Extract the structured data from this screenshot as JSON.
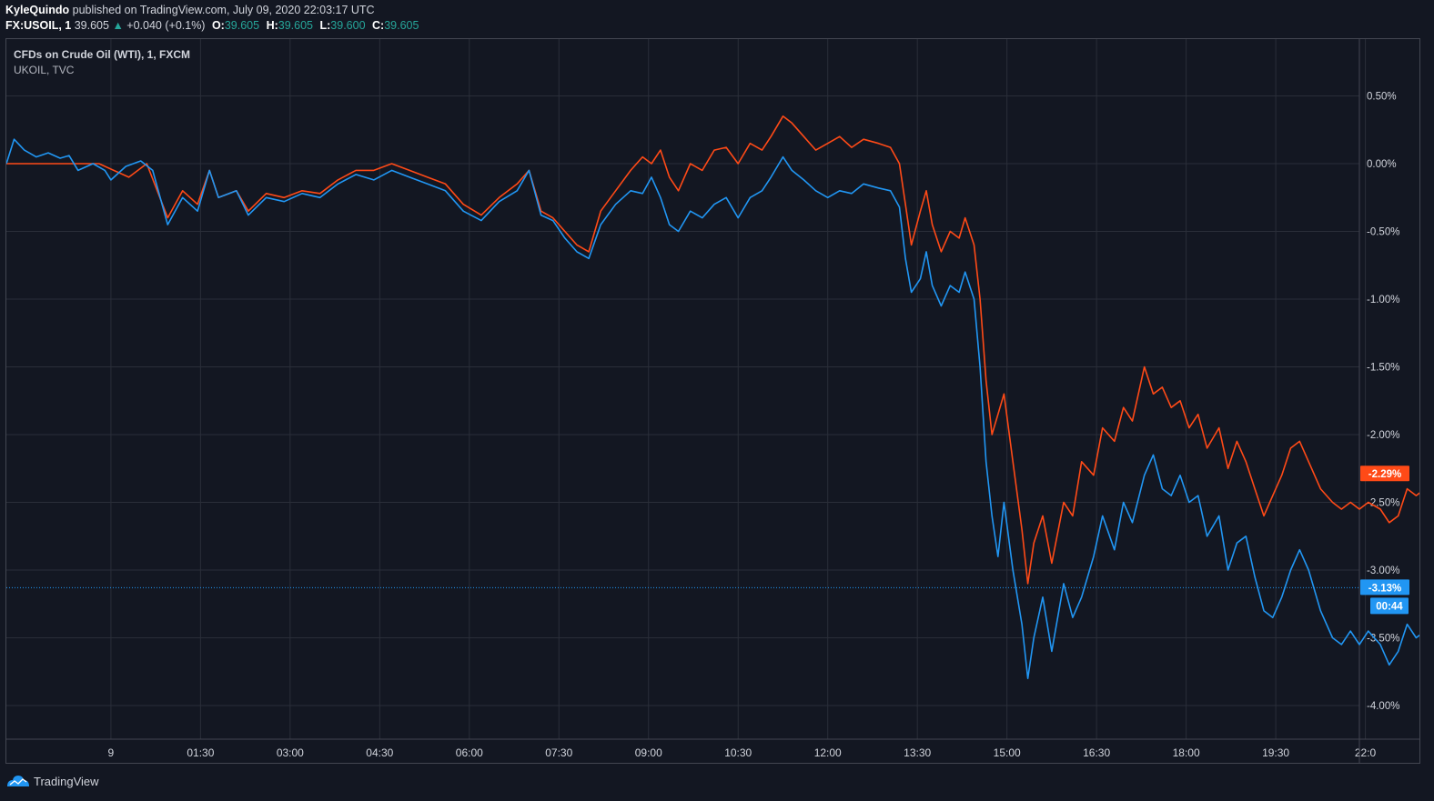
{
  "header": {
    "author": "KyleQuindo",
    "published": "published on TradingView.com, July 09, 2020 22:03:17 UTC",
    "symbol": "FX:USOIL, 1",
    "last": "39.605",
    "change": "+0.040 (+0.1%)",
    "o_label": "O:",
    "o_value": "39.605",
    "h_label": "H:",
    "h_value": "39.605",
    "l_label": "L:",
    "l_value": "39.600",
    "c_label": "C:",
    "c_value": "39.605"
  },
  "legend": {
    "main": "CFDs on Crude Oil (WTI), 1, FXCM",
    "compare": "UKOIL, TVC"
  },
  "footer": {
    "brand": "TradingView"
  },
  "colors": {
    "background": "#131722",
    "grid": "#2a2e39",
    "border": "#434651",
    "axis_text": "#d1d4dc",
    "wti": "#2196f3",
    "ukoil": "#ff4a17",
    "ohlc_value": "#26a69a"
  },
  "chart_data": {
    "type": "line",
    "title": "CFDs on Crude Oil (WTI), 1, FXCM",
    "y_unit": "%",
    "ylim": [
      -4.2,
      0.95
    ],
    "y_ticks": [
      "0.50%",
      "0.00%",
      "-0.50%",
      "-1.00%",
      "-1.50%",
      "-2.00%",
      "-2.50%",
      "-3.00%",
      "-3.50%",
      "-4.00%"
    ],
    "y_tick_values": [
      0.5,
      0.0,
      -0.5,
      -1.0,
      -1.5,
      -2.0,
      -2.5,
      -3.0,
      -3.5,
      -4.0
    ],
    "x_ticks": [
      "9",
      "01:30",
      "03:00",
      "04:30",
      "06:00",
      "07:30",
      "09:00",
      "10:30",
      "12:00",
      "13:30",
      "15:00",
      "16:30",
      "18:00",
      "19:30",
      "22:0"
    ],
    "x_tick_hours": [
      0,
      1.5,
      3,
      4.5,
      6,
      7.5,
      9,
      10.5,
      12,
      13.5,
      15,
      16.5,
      18,
      19.5,
      21
    ],
    "xlim_hours": [
      -1.75,
      20.9
    ],
    "grid": true,
    "series": [
      {
        "name": "CFDs on Crude Oil (WTI), 1, FXCM",
        "color": "#2196f3",
        "last_label": "-3.13%",
        "last_value": -3.13,
        "countdown": "00:44",
        "points": [
          [
            -1.75,
            0.0
          ],
          [
            -1.62,
            0.18
          ],
          [
            -1.45,
            0.1
          ],
          [
            -1.25,
            0.05
          ],
          [
            -1.05,
            0.08
          ],
          [
            -0.85,
            0.04
          ],
          [
            -0.7,
            0.06
          ],
          [
            -0.55,
            -0.05
          ],
          [
            -0.3,
            0.0
          ],
          [
            -0.1,
            -0.05
          ],
          [
            0.0,
            -0.12
          ],
          [
            0.25,
            -0.02
          ],
          [
            0.5,
            0.02
          ],
          [
            0.7,
            -0.05
          ],
          [
            0.95,
            -0.45
          ],
          [
            1.2,
            -0.25
          ],
          [
            1.45,
            -0.35
          ],
          [
            1.65,
            -0.05
          ],
          [
            1.8,
            -0.25
          ],
          [
            2.1,
            -0.2
          ],
          [
            2.3,
            -0.38
          ],
          [
            2.6,
            -0.25
          ],
          [
            2.9,
            -0.28
          ],
          [
            3.2,
            -0.22
          ],
          [
            3.5,
            -0.25
          ],
          [
            3.8,
            -0.15
          ],
          [
            4.1,
            -0.08
          ],
          [
            4.4,
            -0.12
          ],
          [
            4.7,
            -0.05
          ],
          [
            5.0,
            -0.1
          ],
          [
            5.3,
            -0.15
          ],
          [
            5.6,
            -0.2
          ],
          [
            5.9,
            -0.35
          ],
          [
            6.2,
            -0.42
          ],
          [
            6.5,
            -0.28
          ],
          [
            6.8,
            -0.2
          ],
          [
            7.0,
            -0.05
          ],
          [
            7.2,
            -0.38
          ],
          [
            7.4,
            -0.42
          ],
          [
            7.6,
            -0.55
          ],
          [
            7.8,
            -0.65
          ],
          [
            8.0,
            -0.7
          ],
          [
            8.2,
            -0.45
          ],
          [
            8.45,
            -0.3
          ],
          [
            8.7,
            -0.2
          ],
          [
            8.9,
            -0.22
          ],
          [
            9.05,
            -0.1
          ],
          [
            9.2,
            -0.25
          ],
          [
            9.35,
            -0.45
          ],
          [
            9.5,
            -0.5
          ],
          [
            9.7,
            -0.35
          ],
          [
            9.9,
            -0.4
          ],
          [
            10.1,
            -0.3
          ],
          [
            10.3,
            -0.25
          ],
          [
            10.5,
            -0.4
          ],
          [
            10.7,
            -0.25
          ],
          [
            10.9,
            -0.2
          ],
          [
            11.05,
            -0.1
          ],
          [
            11.25,
            0.05
          ],
          [
            11.4,
            -0.05
          ],
          [
            11.6,
            -0.12
          ],
          [
            11.8,
            -0.2
          ],
          [
            12.0,
            -0.25
          ],
          [
            12.2,
            -0.2
          ],
          [
            12.4,
            -0.22
          ],
          [
            12.6,
            -0.15
          ],
          [
            12.85,
            -0.18
          ],
          [
            13.05,
            -0.2
          ],
          [
            13.2,
            -0.32
          ],
          [
            13.3,
            -0.7
          ],
          [
            13.4,
            -0.95
          ],
          [
            13.55,
            -0.85
          ],
          [
            13.65,
            -0.65
          ],
          [
            13.75,
            -0.9
          ],
          [
            13.9,
            -1.05
          ],
          [
            14.05,
            -0.9
          ],
          [
            14.2,
            -0.95
          ],
          [
            14.3,
            -0.8
          ],
          [
            14.45,
            -1.0
          ],
          [
            14.55,
            -1.5
          ],
          [
            14.65,
            -2.2
          ],
          [
            14.75,
            -2.6
          ],
          [
            14.85,
            -2.9
          ],
          [
            14.95,
            -2.5
          ],
          [
            15.1,
            -3.0
          ],
          [
            15.25,
            -3.4
          ],
          [
            15.35,
            -3.8
          ],
          [
            15.45,
            -3.5
          ],
          [
            15.6,
            -3.2
          ],
          [
            15.75,
            -3.6
          ],
          [
            15.95,
            -3.1
          ],
          [
            16.1,
            -3.35
          ],
          [
            16.25,
            -3.2
          ],
          [
            16.45,
            -2.9
          ],
          [
            16.6,
            -2.6
          ],
          [
            16.8,
            -2.85
          ],
          [
            16.95,
            -2.5
          ],
          [
            17.1,
            -2.65
          ],
          [
            17.3,
            -2.3
          ],
          [
            17.45,
            -2.15
          ],
          [
            17.6,
            -2.4
          ],
          [
            17.75,
            -2.45
          ],
          [
            17.9,
            -2.3
          ],
          [
            18.05,
            -2.5
          ],
          [
            18.2,
            -2.45
          ],
          [
            18.35,
            -2.75
          ],
          [
            18.55,
            -2.6
          ],
          [
            18.7,
            -3.0
          ],
          [
            18.85,
            -2.8
          ],
          [
            19.0,
            -2.75
          ],
          [
            19.15,
            -3.05
          ],
          [
            19.3,
            -3.3
          ],
          [
            19.45,
            -3.35
          ],
          [
            19.6,
            -3.2
          ],
          [
            19.75,
            -3.0
          ],
          [
            19.9,
            -2.85
          ],
          [
            20.05,
            -3.0
          ],
          [
            20.25,
            -3.3
          ],
          [
            20.45,
            -3.5
          ],
          [
            20.6,
            -3.55
          ],
          [
            20.75,
            -3.45
          ],
          [
            20.9,
            -3.55
          ],
          [
            21.05,
            -3.45
          ],
          [
            21.25,
            -3.55
          ],
          [
            21.4,
            -3.7
          ],
          [
            21.55,
            -3.6
          ],
          [
            21.7,
            -3.4
          ],
          [
            21.85,
            -3.5
          ],
          [
            22.0,
            -3.45
          ],
          [
            22.2,
            -3.35
          ],
          [
            22.35,
            -3.3
          ],
          [
            22.5,
            -3.25
          ],
          [
            22.65,
            -3.15
          ],
          [
            22.8,
            -3.13
          ]
        ]
      },
      {
        "name": "UKOIL, TVC",
        "color": "#ff4a17",
        "last_label": "-2.29%",
        "last_value": -2.29,
        "points": [
          [
            -1.75,
            0.0
          ],
          [
            -1.0,
            0.0
          ],
          [
            -0.2,
            0.0
          ],
          [
            0.3,
            -0.1
          ],
          [
            0.6,
            0.0
          ],
          [
            0.95,
            -0.4
          ],
          [
            1.2,
            -0.2
          ],
          [
            1.45,
            -0.3
          ],
          [
            1.65,
            -0.05
          ],
          [
            1.8,
            -0.25
          ],
          [
            2.1,
            -0.2
          ],
          [
            2.3,
            -0.35
          ],
          [
            2.6,
            -0.22
          ],
          [
            2.9,
            -0.25
          ],
          [
            3.2,
            -0.2
          ],
          [
            3.5,
            -0.22
          ],
          [
            3.8,
            -0.12
          ],
          [
            4.1,
            -0.05
          ],
          [
            4.4,
            -0.05
          ],
          [
            4.7,
            0.0
          ],
          [
            5.0,
            -0.05
          ],
          [
            5.3,
            -0.1
          ],
          [
            5.6,
            -0.15
          ],
          [
            5.9,
            -0.3
          ],
          [
            6.2,
            -0.38
          ],
          [
            6.5,
            -0.25
          ],
          [
            6.8,
            -0.15
          ],
          [
            7.0,
            -0.05
          ],
          [
            7.2,
            -0.35
          ],
          [
            7.4,
            -0.4
          ],
          [
            7.6,
            -0.5
          ],
          [
            7.8,
            -0.6
          ],
          [
            8.0,
            -0.65
          ],
          [
            8.2,
            -0.35
          ],
          [
            8.45,
            -0.2
          ],
          [
            8.7,
            -0.05
          ],
          [
            8.9,
            0.05
          ],
          [
            9.05,
            0.0
          ],
          [
            9.2,
            0.1
          ],
          [
            9.35,
            -0.1
          ],
          [
            9.5,
            -0.2
          ],
          [
            9.7,
            0.0
          ],
          [
            9.9,
            -0.05
          ],
          [
            10.1,
            0.1
          ],
          [
            10.3,
            0.12
          ],
          [
            10.5,
            0.0
          ],
          [
            10.7,
            0.15
          ],
          [
            10.9,
            0.1
          ],
          [
            11.05,
            0.2
          ],
          [
            11.25,
            0.35
          ],
          [
            11.4,
            0.3
          ],
          [
            11.6,
            0.2
          ],
          [
            11.8,
            0.1
          ],
          [
            12.0,
            0.15
          ],
          [
            12.2,
            0.2
          ],
          [
            12.4,
            0.12
          ],
          [
            12.6,
            0.18
          ],
          [
            12.85,
            0.15
          ],
          [
            13.05,
            0.12
          ],
          [
            13.2,
            0.0
          ],
          [
            13.3,
            -0.3
          ],
          [
            13.4,
            -0.6
          ],
          [
            13.55,
            -0.35
          ],
          [
            13.65,
            -0.2
          ],
          [
            13.75,
            -0.45
          ],
          [
            13.9,
            -0.65
          ],
          [
            14.05,
            -0.5
          ],
          [
            14.2,
            -0.55
          ],
          [
            14.3,
            -0.4
          ],
          [
            14.45,
            -0.6
          ],
          [
            14.55,
            -1.0
          ],
          [
            14.65,
            -1.6
          ],
          [
            14.75,
            -2.0
          ],
          [
            14.85,
            -1.85
          ],
          [
            14.95,
            -1.7
          ],
          [
            15.1,
            -2.2
          ],
          [
            15.25,
            -2.7
          ],
          [
            15.35,
            -3.1
          ],
          [
            15.45,
            -2.8
          ],
          [
            15.6,
            -2.6
          ],
          [
            15.75,
            -2.95
          ],
          [
            15.95,
            -2.5
          ],
          [
            16.1,
            -2.6
          ],
          [
            16.25,
            -2.2
          ],
          [
            16.45,
            -2.3
          ],
          [
            16.6,
            -1.95
          ],
          [
            16.8,
            -2.05
          ],
          [
            16.95,
            -1.8
          ],
          [
            17.1,
            -1.9
          ],
          [
            17.3,
            -1.5
          ],
          [
            17.45,
            -1.7
          ],
          [
            17.6,
            -1.65
          ],
          [
            17.75,
            -1.8
          ],
          [
            17.9,
            -1.75
          ],
          [
            18.05,
            -1.95
          ],
          [
            18.2,
            -1.85
          ],
          [
            18.35,
            -2.1
          ],
          [
            18.55,
            -1.95
          ],
          [
            18.7,
            -2.25
          ],
          [
            18.85,
            -2.05
          ],
          [
            19.0,
            -2.2
          ],
          [
            19.15,
            -2.4
          ],
          [
            19.3,
            -2.6
          ],
          [
            19.45,
            -2.45
          ],
          [
            19.6,
            -2.3
          ],
          [
            19.75,
            -2.1
          ],
          [
            19.9,
            -2.05
          ],
          [
            20.05,
            -2.2
          ],
          [
            20.25,
            -2.4
          ],
          [
            20.45,
            -2.5
          ],
          [
            20.6,
            -2.55
          ],
          [
            20.75,
            -2.5
          ],
          [
            20.9,
            -2.55
          ],
          [
            21.05,
            -2.5
          ],
          [
            21.25,
            -2.55
          ],
          [
            21.4,
            -2.65
          ],
          [
            21.55,
            -2.6
          ],
          [
            21.7,
            -2.4
          ],
          [
            21.85,
            -2.45
          ],
          [
            22.0,
            -2.4
          ],
          [
            22.2,
            -2.4
          ],
          [
            22.35,
            -2.35
          ],
          [
            22.5,
            -2.2
          ],
          [
            22.65,
            -2.1
          ],
          [
            22.8,
            -2.29
          ]
        ]
      }
    ]
  }
}
